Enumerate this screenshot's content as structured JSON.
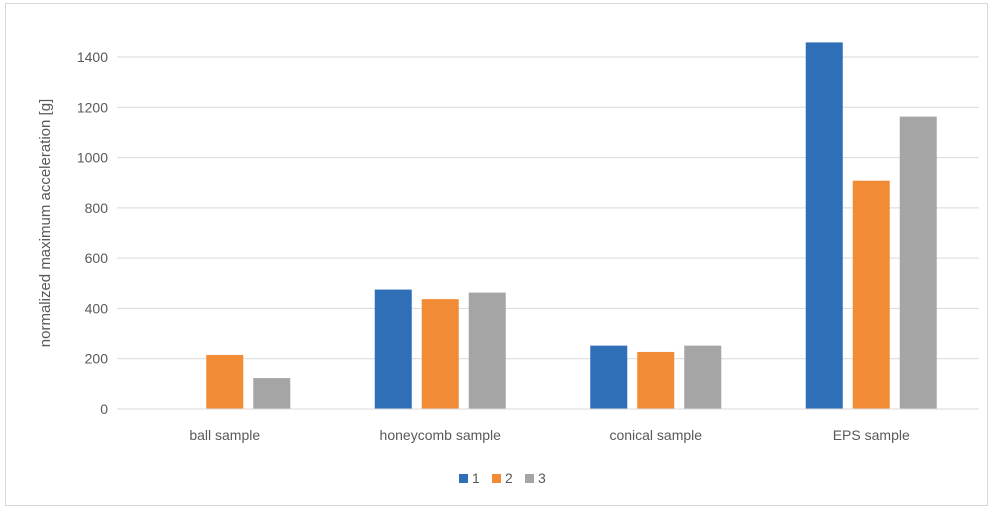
{
  "chart_data": {
    "type": "bar",
    "title": "",
    "xlabel": "",
    "ylabel": "normalized maximum acceleration  [g]",
    "categories": [
      "ball sample",
      "honeycomb sample",
      "conical sample",
      "EPS sample"
    ],
    "series": [
      {
        "name": "1",
        "color": "#2e6fb7",
        "values": [
          0,
          475,
          252,
          1458
        ]
      },
      {
        "name": "2",
        "color": "#f28b36",
        "values": [
          215,
          437,
          227,
          908
        ]
      },
      {
        "name": "3",
        "color": "#a5a5a5",
        "values": [
          123,
          463,
          252,
          1163
        ]
      }
    ],
    "ylim": [
      0,
      1400
    ],
    "yticks": [
      0,
      200,
      400,
      600,
      800,
      1000,
      1200,
      1400
    ],
    "grid": true,
    "legend": "bottom"
  }
}
